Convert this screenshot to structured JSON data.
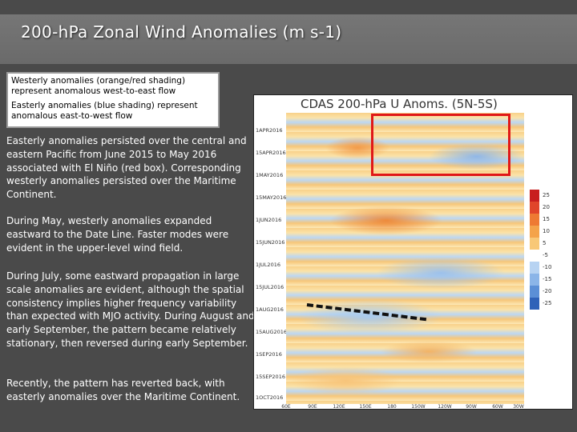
{
  "title": "200-hPa Zonal Wind Anomalies (m s-1)",
  "legend": {
    "westerly": "Westerly anomalies (orange/red shading) represent anomalous west-to-east flow",
    "easterly": "Easterly anomalies (blue shading) represent anomalous east-to-west flow"
  },
  "paragraphs": [
    "Easterly anomalies persisted over the central and eastern Pacific from June 2015 to May 2016 associated with El Niño (red box). Corresponding westerly anomalies persisted over the Maritime Continent.",
    "During May, westerly anomalies expanded eastward to the Date Line. Faster modes were evident in the upper-level wind field.",
    "During July, some eastward propagation in large scale anomalies are evident, although the spatial consistency implies higher frequency variability than expected with MJO activity. During August and early September, the pattern became relatively stationary, then reversed during early September.",
    "Recently, the pattern has reverted back, with easterly anomalies over the Maritime Continent."
  ],
  "figure": {
    "title": "CDAS 200-hPa U Anoms. (5N-5S)",
    "y_labels": [
      "1APR2016",
      "15APR2016",
      "1MAY2016",
      "15MAY2016",
      "1JUN2016",
      "15JUN2016",
      "1JUL2016",
      "15JUL2016",
      "1AUG2016",
      "15AUG2016",
      "1SEP2016",
      "15SEP2016",
      "1OCT2016"
    ],
    "x_labels": [
      "60E",
      "90E",
      "120E",
      "150E",
      "180",
      "150W",
      "120W",
      "90W",
      "60W",
      "30W"
    ],
    "colorbar": {
      "labels": [
        "25",
        "20",
        "15",
        "10",
        "5",
        "-5",
        "-10",
        "-15",
        "-20",
        "-25"
      ],
      "colors": [
        "#c81e1e",
        "#e0452a",
        "#ee7a33",
        "#f4a34a",
        "#f8c877",
        "#ffffff",
        "#b7d3f2",
        "#8bb5e8",
        "#5b8fd6",
        "#2f62b8"
      ]
    },
    "box_color": "#e01818"
  }
}
